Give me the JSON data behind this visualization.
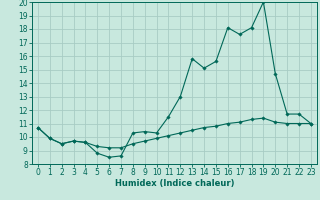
{
  "xlabel": "Humidex (Indice chaleur)",
  "ylabel": "",
  "bg_color": "#c8e8de",
  "grid_color": "#a8ccc4",
  "line_color": "#006858",
  "xlim": [
    -0.5,
    23.5
  ],
  "ylim": [
    8,
    20
  ],
  "yticks": [
    8,
    9,
    10,
    11,
    12,
    13,
    14,
    15,
    16,
    17,
    18,
    19,
    20
  ],
  "xticks": [
    0,
    1,
    2,
    3,
    4,
    5,
    6,
    7,
    8,
    9,
    10,
    11,
    12,
    13,
    14,
    15,
    16,
    17,
    18,
    19,
    20,
    21,
    22,
    23
  ],
  "line1_x": [
    0,
    1,
    2,
    3,
    4,
    5,
    6,
    7,
    8,
    9,
    10,
    11,
    12,
    13,
    14,
    15,
    16,
    17,
    18,
    19,
    20,
    21,
    22,
    23
  ],
  "line1_y": [
    10.7,
    9.9,
    9.5,
    9.7,
    9.6,
    8.8,
    8.5,
    8.6,
    10.3,
    10.4,
    10.3,
    11.5,
    13.0,
    15.8,
    15.1,
    15.6,
    18.1,
    17.6,
    18.1,
    20.0,
    14.7,
    11.7,
    11.7,
    11.0
  ],
  "line2_x": [
    0,
    1,
    2,
    3,
    4,
    5,
    6,
    7,
    8,
    9,
    10,
    11,
    12,
    13,
    14,
    15,
    16,
    17,
    18,
    19,
    20,
    21,
    22,
    23
  ],
  "line2_y": [
    10.7,
    9.9,
    9.5,
    9.7,
    9.6,
    9.3,
    9.2,
    9.2,
    9.5,
    9.7,
    9.9,
    10.1,
    10.3,
    10.5,
    10.7,
    10.8,
    11.0,
    11.1,
    11.3,
    11.4,
    11.1,
    11.0,
    11.0,
    11.0
  ],
  "tick_fontsize": 5.5,
  "xlabel_fontsize": 6.0
}
